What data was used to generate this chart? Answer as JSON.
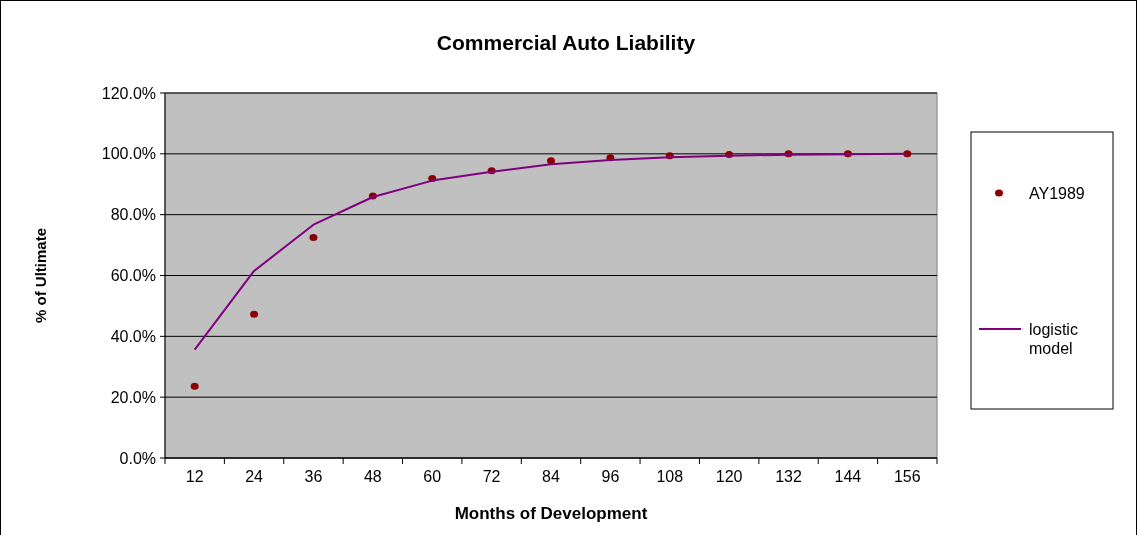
{
  "chart_data": {
    "type": "scatter",
    "title": "Commercial Auto Liability",
    "xlabel": "Months of Development",
    "ylabel": "% of Ultimate",
    "categories": [
      "12",
      "24",
      "36",
      "48",
      "60",
      "72",
      "84",
      "96",
      "108",
      "120",
      "132",
      "144",
      "156"
    ],
    "series": [
      {
        "name": "AY1989",
        "color": "#8b0000",
        "marker": "circle",
        "values": [
          23.6,
          47.3,
          72.5,
          86.1,
          91.9,
          94.4,
          97.7,
          98.7,
          99.4,
          99.8,
          100,
          100,
          100
        ]
      },
      {
        "name": "logistic model",
        "type": "line",
        "color": "#800080",
        "marker": "none",
        "values": [
          35.6,
          61.5,
          76.7,
          85.8,
          91.2,
          94.1,
          96.6,
          98.0,
          98.9,
          99.4,
          99.7,
          99.9,
          100
        ]
      }
    ],
    "ylim": [
      0,
      120
    ],
    "yticks": [
      {
        "value": 0,
        "label": "0.0%"
      },
      {
        "value": 20,
        "label": "20.0%"
      },
      {
        "value": 40,
        "label": "40.0%"
      },
      {
        "value": 60,
        "label": "60.0%"
      },
      {
        "value": 80,
        "label": "80.0%"
      },
      {
        "value": 100,
        "label": "100.0%"
      },
      {
        "value": 120,
        "label": "120.0%"
      }
    ],
    "grid": "y",
    "legend": "right"
  }
}
